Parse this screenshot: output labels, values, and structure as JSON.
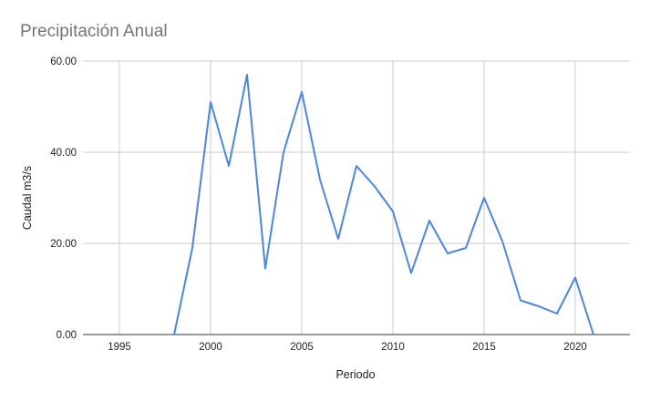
{
  "chart_data": {
    "type": "line",
    "title": "Precipitación Anual",
    "xlabel": "Periodo",
    "ylabel": "Caudal m3/s",
    "xlim": [
      1993,
      2023
    ],
    "ylim": [
      0,
      60
    ],
    "x_ticks": [
      1995,
      2000,
      2005,
      2010,
      2015,
      2020
    ],
    "x_tick_labels": [
      "1995",
      "2000",
      "2005",
      "2010",
      "2015",
      "2020"
    ],
    "y_ticks": [
      0,
      20,
      40,
      60
    ],
    "y_tick_labels": [
      "0.00",
      "20.00",
      "40.00",
      "60.00"
    ],
    "grid": true,
    "legend": "none",
    "series": [
      {
        "color": "#4a86e8",
        "x": [
          1998,
          1999,
          2000,
          2001,
          2002,
          2003,
          2004,
          2005,
          2006,
          2007,
          2008,
          2009,
          2010,
          2011,
          2012,
          2013,
          2014,
          2015,
          2016,
          2017,
          2018,
          2019,
          2020,
          2021
        ],
        "y": [
          0,
          19,
          51,
          37,
          57,
          14.5,
          40,
          53.2,
          34,
          21,
          37,
          32.5,
          27,
          13.5,
          25,
          17.8,
          19,
          30,
          20.5,
          7.5,
          6.2,
          4.6,
          12.5,
          0
        ]
      }
    ]
  }
}
